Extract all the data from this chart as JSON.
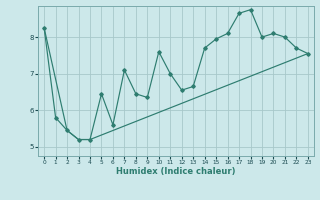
{
  "title": "",
  "xlabel": "Humidex (Indice chaleur)",
  "ylabel": "",
  "bg_color": "#cce8ea",
  "grid_color": "#a8c8ca",
  "line_color": "#2e7d70",
  "xlim": [
    -0.5,
    23.5
  ],
  "ylim": [
    4.75,
    8.85
  ],
  "yticks": [
    5,
    6,
    7,
    8
  ],
  "xticks": [
    0,
    1,
    2,
    3,
    4,
    5,
    6,
    7,
    8,
    9,
    10,
    11,
    12,
    13,
    14,
    15,
    16,
    17,
    18,
    19,
    20,
    21,
    22,
    23
  ],
  "line1_x": [
    0,
    1,
    2,
    3,
    4,
    5,
    6,
    7,
    8,
    9,
    10,
    11,
    12,
    13,
    14,
    15,
    16,
    17,
    18,
    19,
    20,
    21,
    22,
    23
  ],
  "line1_y": [
    8.25,
    5.8,
    5.45,
    5.2,
    5.2,
    6.45,
    5.6,
    7.1,
    6.45,
    6.35,
    7.6,
    7.0,
    6.55,
    6.65,
    7.7,
    7.95,
    8.1,
    8.65,
    8.75,
    8.0,
    8.1,
    8.0,
    7.7,
    7.55
  ],
  "line2_x": [
    0,
    2,
    3,
    4,
    23
  ],
  "line2_y": [
    8.25,
    5.45,
    5.2,
    5.2,
    7.55
  ]
}
